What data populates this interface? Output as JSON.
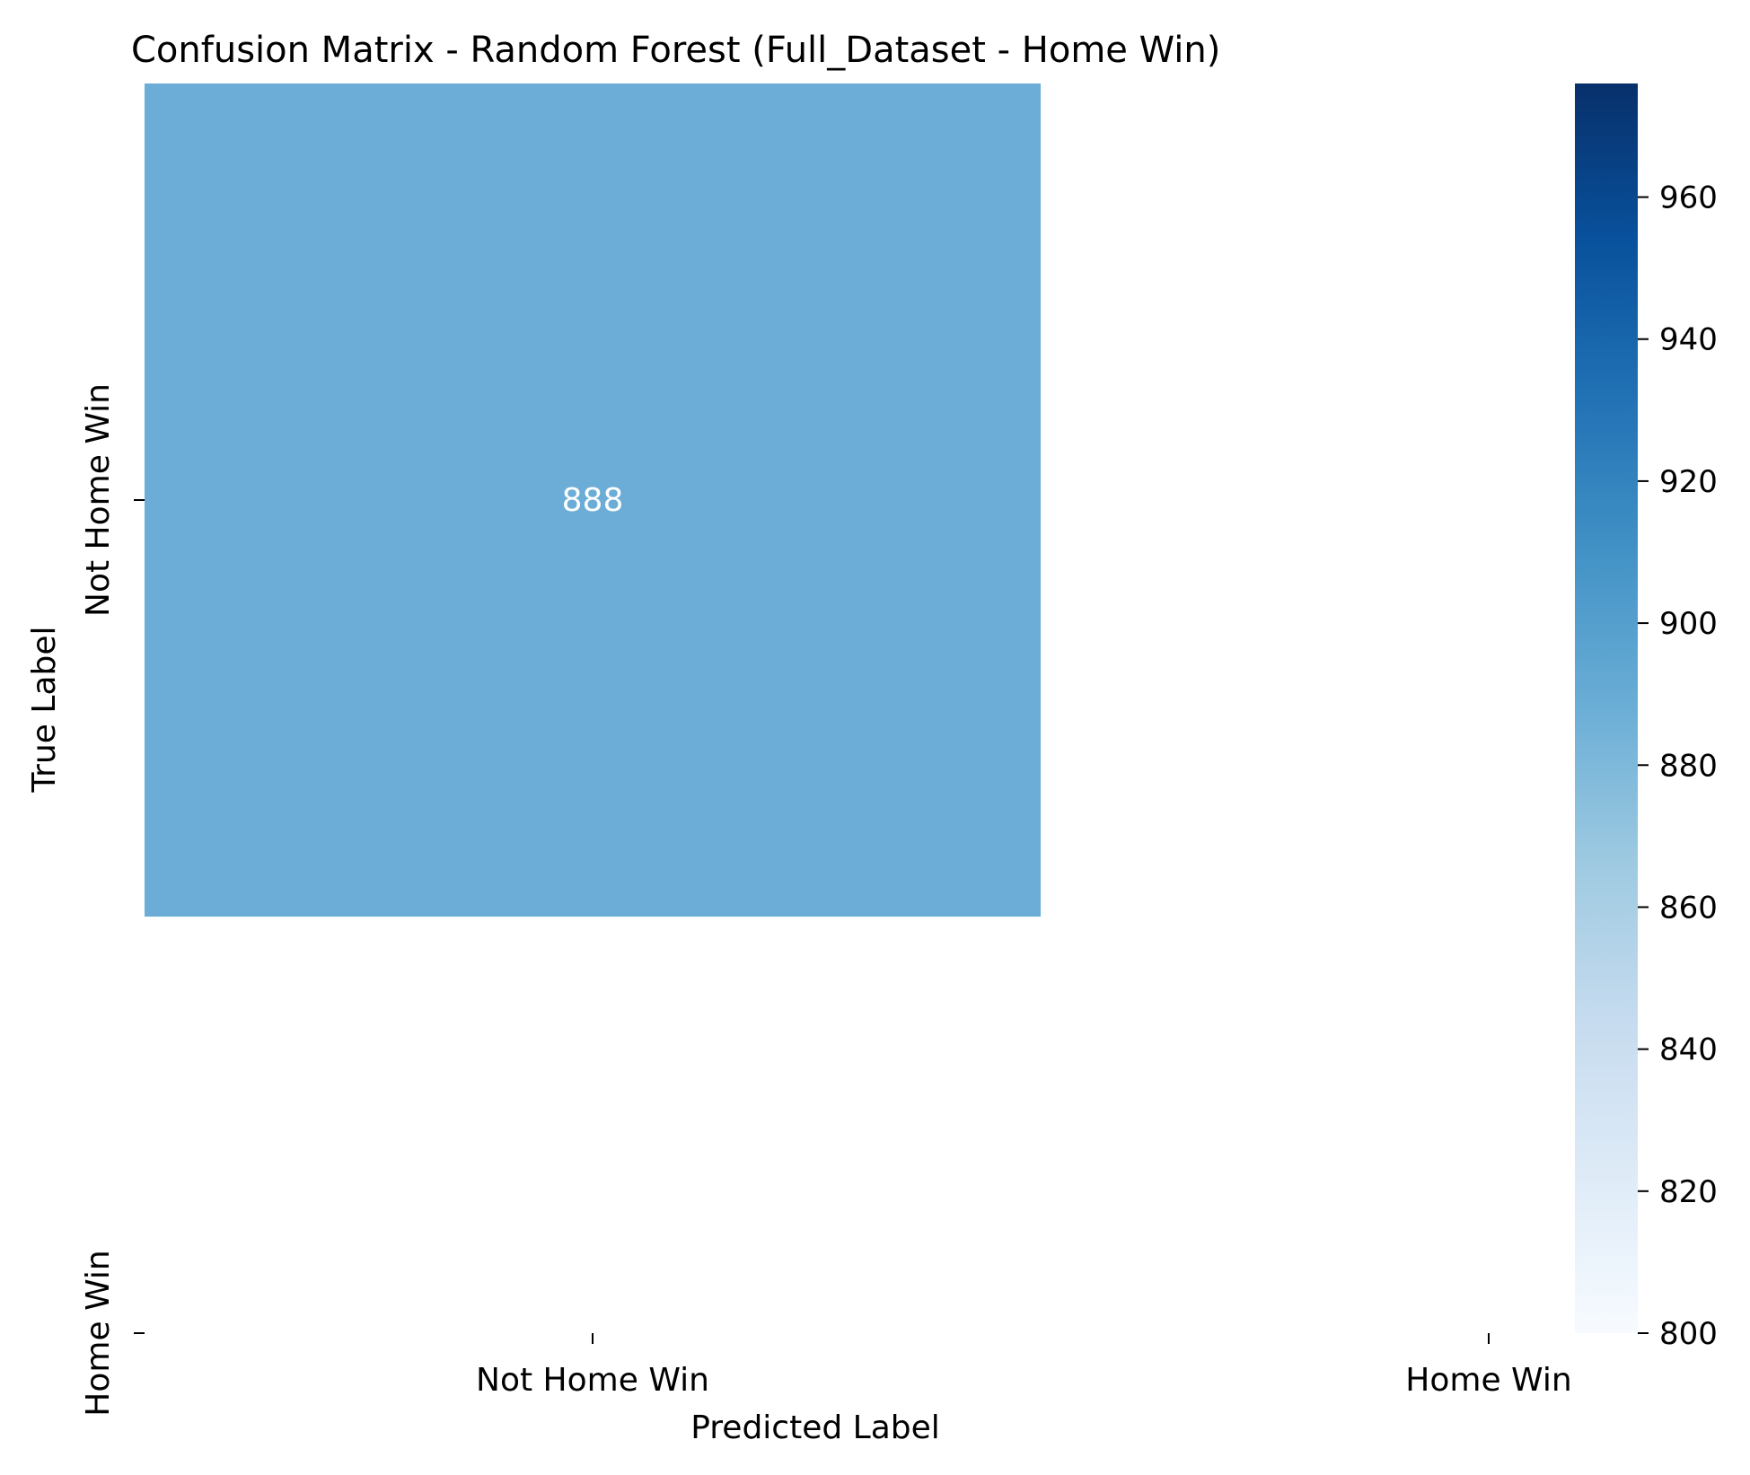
{
  "chart_data": {
    "type": "heatmap",
    "title": "Confusion Matrix - Random Forest (Full_Dataset - Home Win)",
    "xlabel": "Predicted Label",
    "ylabel": "True Label",
    "x_categories": [
      "Not Home Win",
      "Home Win"
    ],
    "y_categories": [
      "Not Home Win",
      "Home Win"
    ],
    "matrix": [
      [
        888,
        null
      ],
      [
        null,
        null
      ]
    ],
    "cell_annotations": [
      [
        "888",
        ""
      ],
      [
        "",
        ""
      ]
    ],
    "colormap": "Blues",
    "colorbar": {
      "range": [
        800,
        976
      ],
      "ticks": [
        800,
        820,
        840,
        860,
        880,
        900,
        920,
        940,
        960
      ],
      "tick_labels": [
        "800",
        "820",
        "840",
        "860",
        "880",
        "900",
        "920",
        "940",
        "960"
      ]
    },
    "grid": false,
    "colors": {
      "cell_888": "#6badd6",
      "annotation_text": "#ffffff",
      "cmap_low": "#f7fbff",
      "cmap_high": "#08306b"
    }
  }
}
